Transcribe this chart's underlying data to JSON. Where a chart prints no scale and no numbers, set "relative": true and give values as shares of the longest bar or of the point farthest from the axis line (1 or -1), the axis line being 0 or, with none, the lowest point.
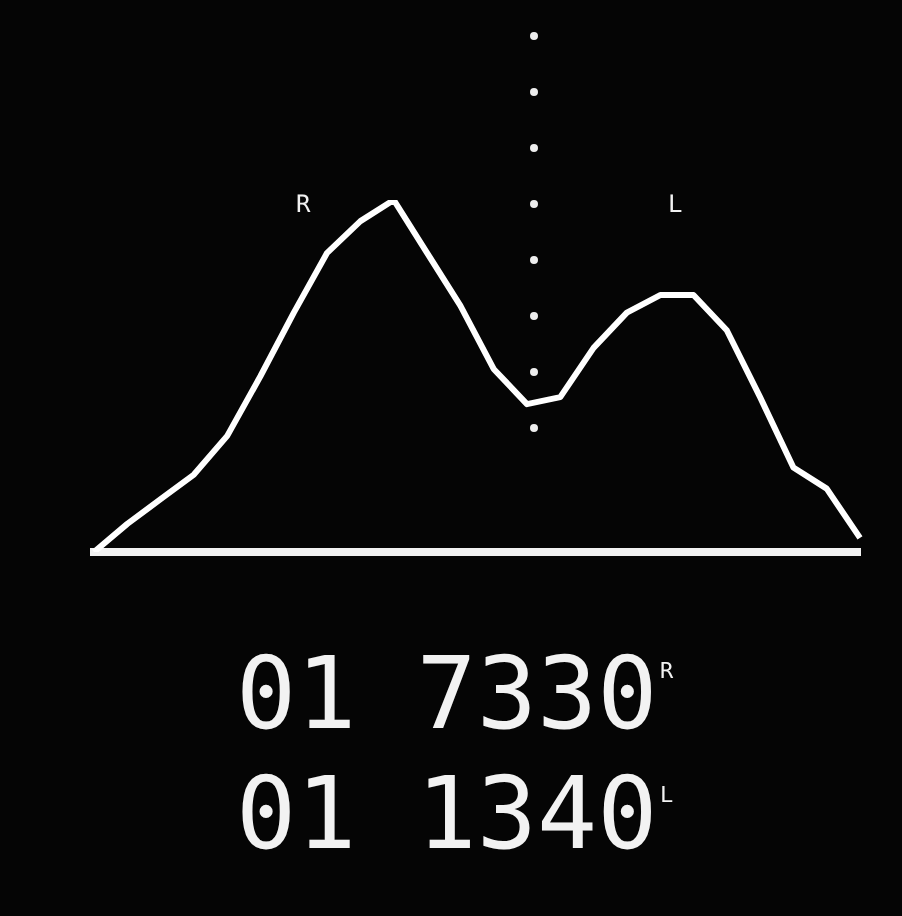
{
  "chart_data": {
    "type": "line",
    "relative": true,
    "color": "#ffffff",
    "categories": [
      null,
      null,
      null,
      null,
      null,
      null,
      null,
      null,
      null,
      null,
      null,
      null,
      null,
      null,
      null,
      null,
      null,
      null,
      null,
      null,
      null,
      null,
      null,
      null
    ],
    "values": [
      0,
      0.08,
      0.15,
      0.22,
      0.33,
      0.5,
      0.68,
      0.85,
      0.94,
      1,
      0.85,
      0.7,
      0.52,
      0.42,
      0.44,
      0.58,
      0.68,
      0.73,
      0.73,
      0.63,
      0.44,
      0.24,
      0.18,
      0.04
    ],
    "annotations": [
      "R",
      "L",
      "01 7330",
      "R",
      "01 1340",
      "L"
    ]
  }
}
